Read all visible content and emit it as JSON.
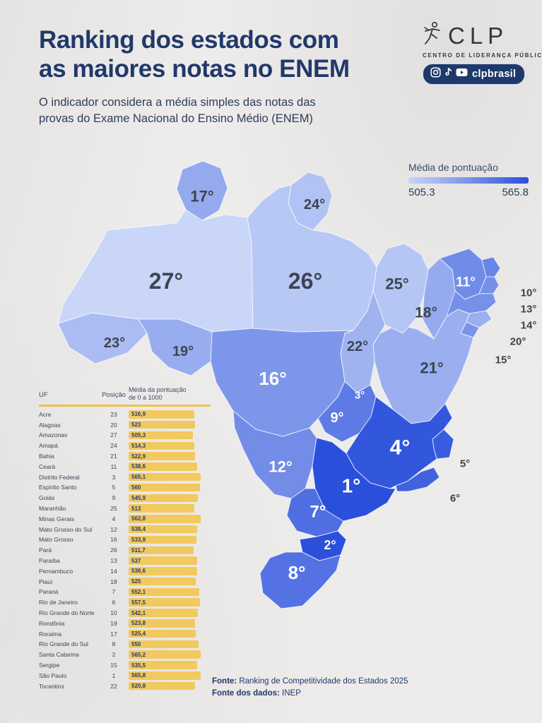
{
  "header": {
    "title_line1": "Ranking dos estados com",
    "title_line2": "as maiores notas no ENEM",
    "subtitle_line1": "O indicador considera a média simples das notas das",
    "subtitle_line2": "provas do Exame Nacional do Ensino Médio (ENEM)"
  },
  "brand": {
    "logo_text": "CLP",
    "tagline": "CENTRO DE LIDERANÇA PÚBLICA",
    "social_handle": "clpbrasil",
    "social_icons": [
      "instagram-icon",
      "tiktok-icon",
      "youtube-icon"
    ],
    "pill_color": "#1e3a6c"
  },
  "legend": {
    "title": "Média de pontuação",
    "min_label": "505.3",
    "max_label": "565.8",
    "min_value": 505.3,
    "max_value": 565.8,
    "color_low": "#c9d6f8",
    "color_high": "#2a4fdb"
  },
  "map": {
    "degree_suffix": "°",
    "label_dark_color": "#3d4450",
    "label_light_color": "#ffffff"
  },
  "table": {
    "col_uf": "UF",
    "col_position": "Posição",
    "col_score_line1": "Média da pontuação",
    "col_score_line2": "de 0 a 1000",
    "bar_color": "#f2c95f"
  },
  "chart_data": {
    "type": "heatmap",
    "subtype": "choropleth map of Brazilian states + ranked bar table",
    "title": "Ranking dos estados com as maiores notas no ENEM",
    "metric": "Média da pontuação de 0 a 1000",
    "scale": {
      "min": 505.3,
      "max": 565.8
    },
    "legend_position": "top-right",
    "states": [
      {
        "uf": "AC",
        "name": "Acre",
        "rank": 23,
        "score": 516.9
      },
      {
        "uf": "AL",
        "name": "Alagoas",
        "rank": 20,
        "score": 523
      },
      {
        "uf": "AM",
        "name": "Amazonas",
        "rank": 27,
        "score": 505.3
      },
      {
        "uf": "AP",
        "name": "Amapá",
        "rank": 24,
        "score": 514.3
      },
      {
        "uf": "BA",
        "name": "Bahia",
        "rank": 21,
        "score": 522.9
      },
      {
        "uf": "CE",
        "name": "Ceará",
        "rank": 11,
        "score": 538.6
      },
      {
        "uf": "DF",
        "name": "Distrito Federal",
        "rank": 3,
        "score": 565.1
      },
      {
        "uf": "ES",
        "name": "Espírito Santo",
        "rank": 5,
        "score": 560
      },
      {
        "uf": "GO",
        "name": "Goiás",
        "rank": 9,
        "score": 545.9
      },
      {
        "uf": "MA",
        "name": "Maranhão",
        "rank": 25,
        "score": 513
      },
      {
        "uf": "MG",
        "name": "Minas Gerais",
        "rank": 4,
        "score": 562.8
      },
      {
        "uf": "MS",
        "name": "Mato Grosso do Sul",
        "rank": 12,
        "score": 538.4
      },
      {
        "uf": "MT",
        "name": "Mato Grosso",
        "rank": 16,
        "score": 533.9
      },
      {
        "uf": "PA",
        "name": "Pará",
        "rank": 26,
        "score": 511.7
      },
      {
        "uf": "PB",
        "name": "Paraíba",
        "rank": 13,
        "score": 537
      },
      {
        "uf": "PE",
        "name": "Pernambuco",
        "rank": 14,
        "score": 536.6
      },
      {
        "uf": "PI",
        "name": "Piauí",
        "rank": 18,
        "score": 525
      },
      {
        "uf": "PR",
        "name": "Paraná",
        "rank": 7,
        "score": 552.1
      },
      {
        "uf": "RJ",
        "name": "Rio de Janeiro",
        "rank": 6,
        "score": 557.5
      },
      {
        "uf": "RN",
        "name": "Rio Grande do Norte",
        "rank": 10,
        "score": 542.1
      },
      {
        "uf": "RO",
        "name": "Rondônia",
        "rank": 19,
        "score": 523.8
      },
      {
        "uf": "RR",
        "name": "Roraima",
        "rank": 17,
        "score": 525.4
      },
      {
        "uf": "RS",
        "name": "Rio Grande do Sul",
        "rank": 8,
        "score": 550
      },
      {
        "uf": "SC",
        "name": "Santa Catarina",
        "rank": 2,
        "score": 565.2
      },
      {
        "uf": "SE",
        "name": "Sergipe",
        "rank": 15,
        "score": 535.5
      },
      {
        "uf": "SP",
        "name": "São Paulo",
        "rank": 1,
        "score": 565.8
      },
      {
        "uf": "TO",
        "name": "Tocantins",
        "rank": 22,
        "score": 520.8
      }
    ]
  },
  "footer": {
    "source_label": "Fonte:",
    "source_text": " Ranking de Competitividade dos Estados 2025",
    "data_label": "Fonte dos dados:",
    "data_text": " INEP"
  }
}
